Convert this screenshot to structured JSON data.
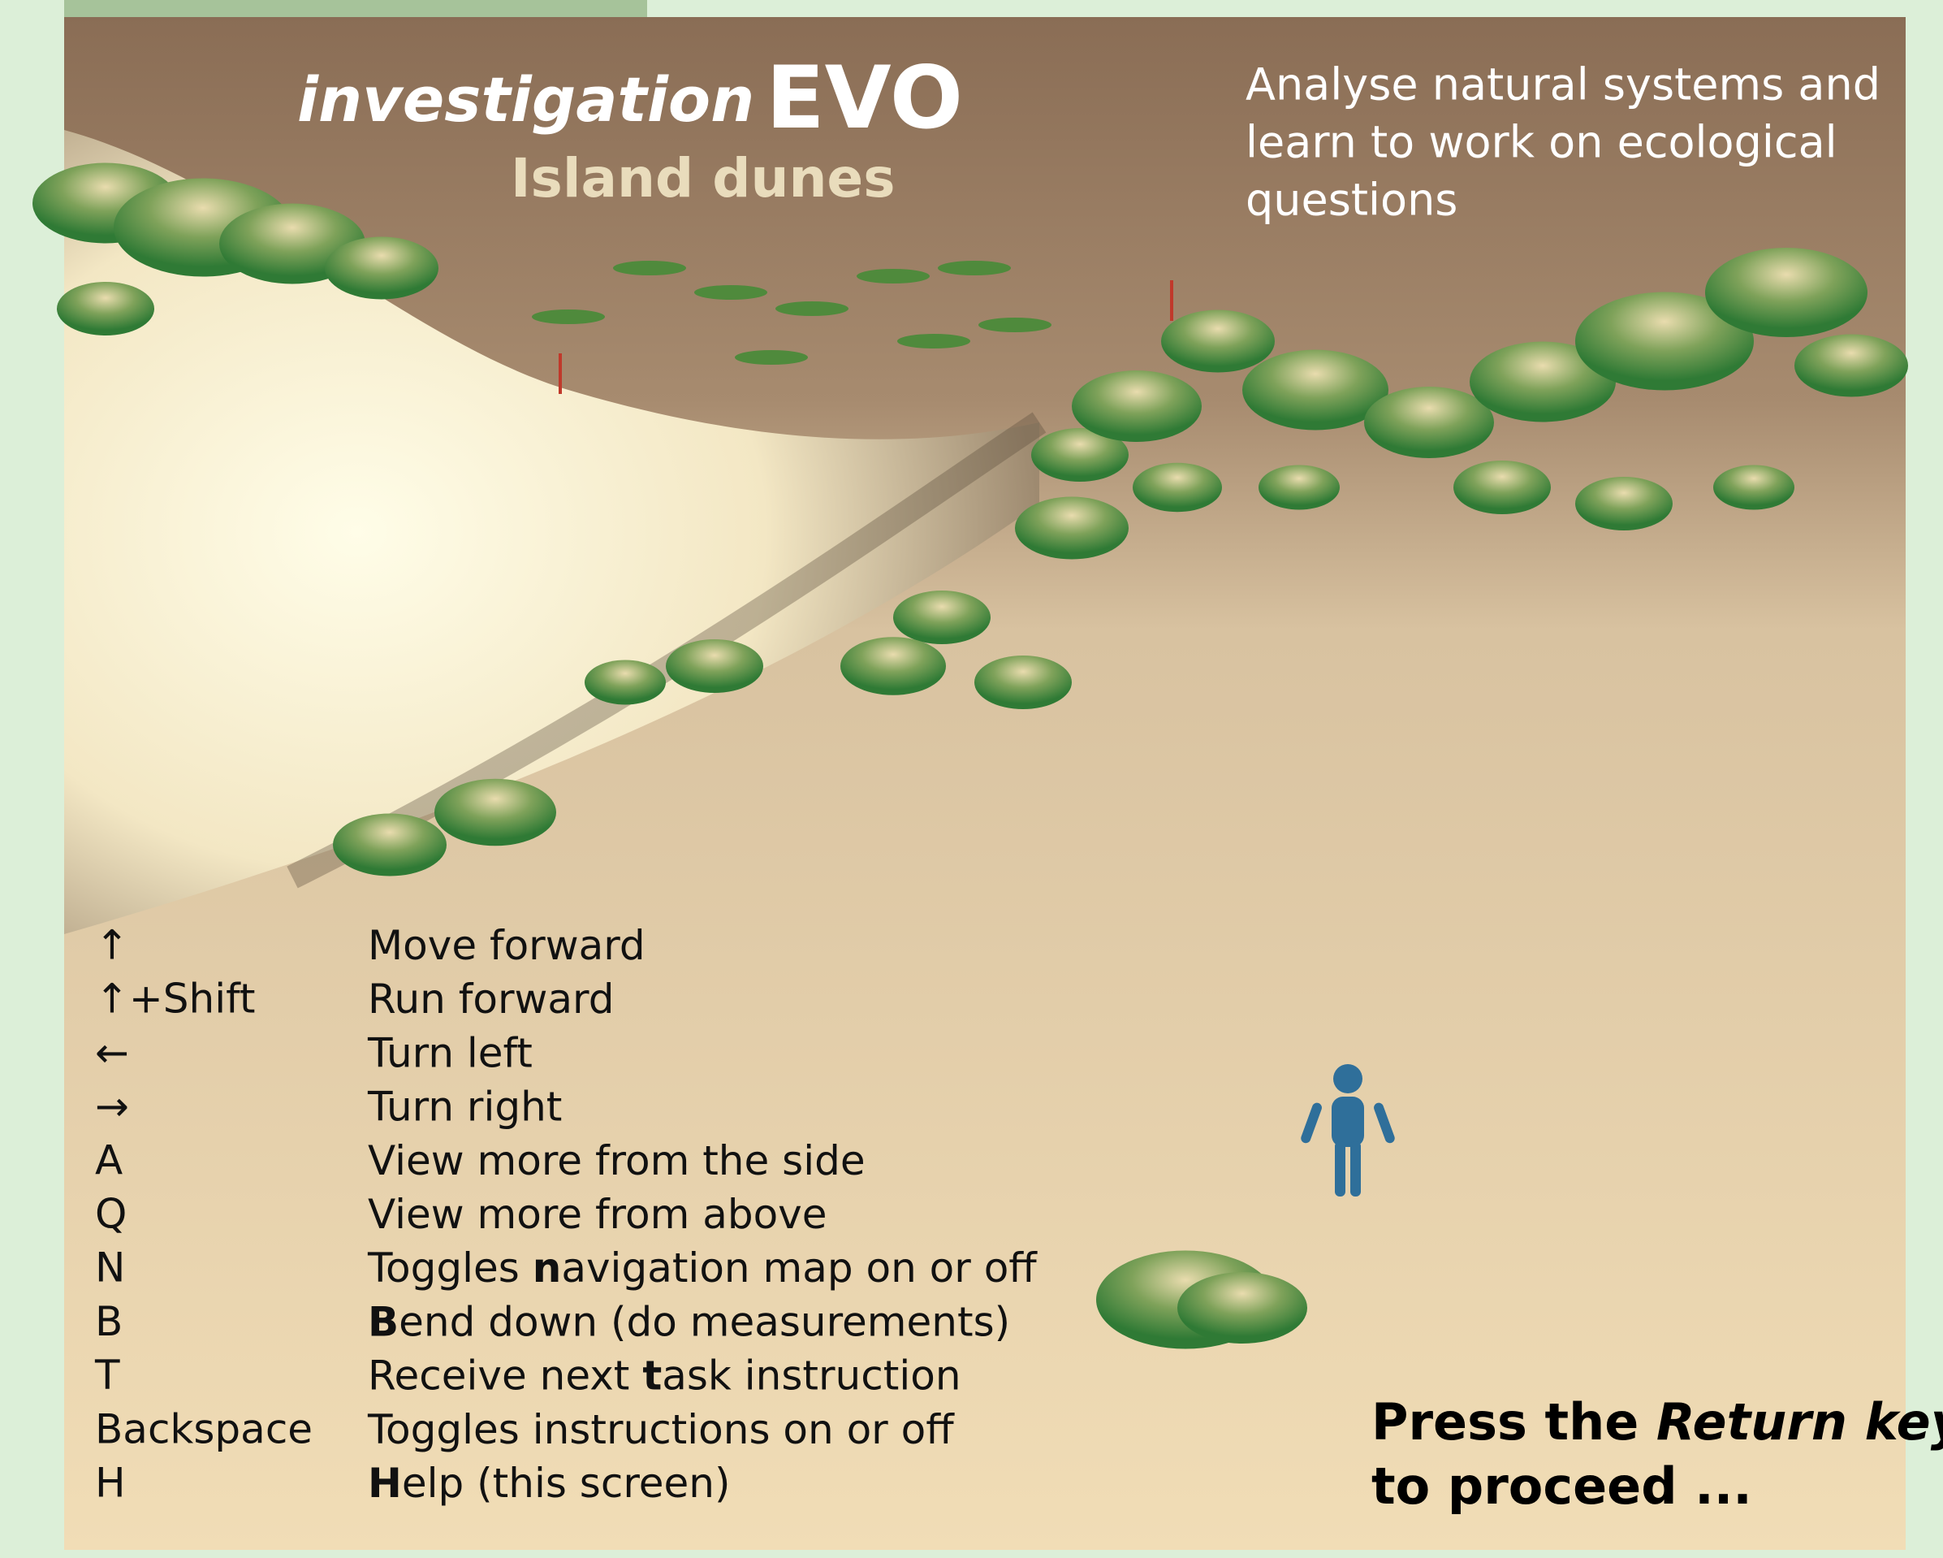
{
  "header": {
    "title_italic": "investigation",
    "title_bold": "EVO",
    "subtitle": "Island dunes",
    "tagline": [
      "Analyse natural systems and",
      "learn to work on ecological",
      "questions"
    ]
  },
  "controls": [
    {
      "key": "↑",
      "action": {
        "before": "Move forward"
      }
    },
    {
      "key": "↑+Shift",
      "action": {
        "before": "Run forward"
      }
    },
    {
      "key": "←",
      "action": {
        "before": "Turn left"
      }
    },
    {
      "key": "→",
      "action": {
        "before": "Turn right"
      }
    },
    {
      "key": "A",
      "action": {
        "before": "View more from the side"
      }
    },
    {
      "key": "Q",
      "action": {
        "before": "View more from above"
      }
    },
    {
      "key": "N",
      "action": {
        "before": "Toggles ",
        "bold": "n",
        "after": "avigation map on or off"
      }
    },
    {
      "key": "B",
      "action": {
        "bold": "B",
        "after": "end down (do measurements)"
      }
    },
    {
      "key": "T",
      "action": {
        "before": "Receive next ",
        "bold": "t",
        "after": "ask instruction"
      }
    },
    {
      "key": "Backspace",
      "action": {
        "before": "Toggles instructions on or off"
      }
    },
    {
      "key": "H",
      "action": {
        "bold": "H",
        "after": "elp (this screen)"
      }
    }
  ],
  "prompt": {
    "before": "Press the ",
    "italic": "Return key",
    "line2": "to proceed ..."
  }
}
